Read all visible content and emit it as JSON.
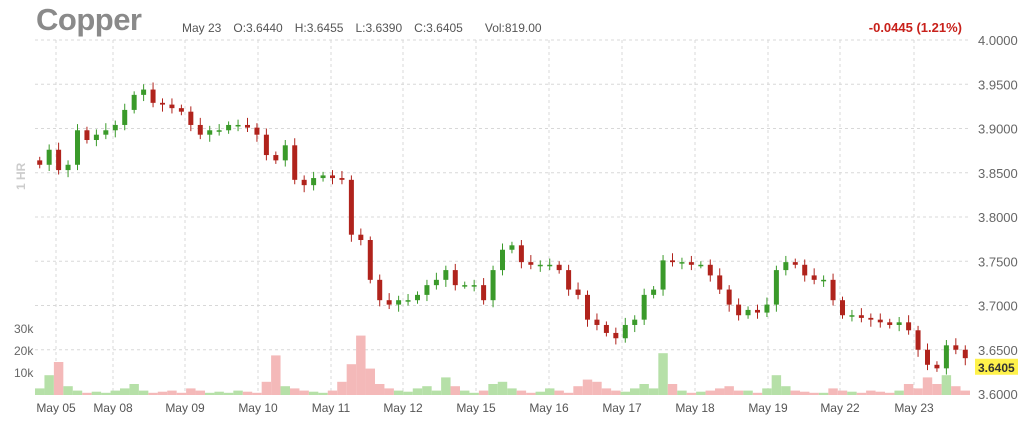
{
  "header": {
    "symbol": "Copper",
    "date": "May 23",
    "open": "O:3.6440",
    "high": "H:3.6455",
    "low": "L:3.6390",
    "close": "C:3.6405",
    "volume": "Vol:819.00",
    "change": "-0.0445 (1.21%)",
    "interval": "1 HR"
  },
  "colors": {
    "up": "#3a9a2a",
    "down": "#b0231c",
    "vol_up": "#b6e0a8",
    "vol_down": "#f4b9b9",
    "last_badge": "#fff24a"
  },
  "chart_data": {
    "type": "candlestick",
    "ylim": [
      3.6,
      4.0
    ],
    "y_ticks": [
      "4.0000",
      "3.9500",
      "3.9000",
      "3.8500",
      "3.8000",
      "3.7500",
      "3.7000",
      "3.6500",
      "3.6000"
    ],
    "x_labels": [
      "May 05",
      "May 08",
      "May 09",
      "May 10",
      "May 11",
      "May 12",
      "May 15",
      "May 16",
      "May 17",
      "May 18",
      "May 19",
      "May 22",
      "May 23"
    ],
    "volume_ticks": [
      "30k",
      "20k",
      "10k"
    ],
    "last_price": "3.6405",
    "grid": true,
    "closes": [
      3.859,
      3.876,
      3.853,
      3.859,
      3.898,
      3.887,
      3.893,
      3.898,
      3.904,
      3.921,
      3.938,
      3.944,
      3.929,
      3.927,
      3.923,
      3.919,
      3.904,
      3.893,
      3.898,
      3.898,
      3.904,
      3.904,
      3.901,
      3.893,
      3.87,
      3.864,
      3.881,
      3.842,
      3.836,
      3.844,
      3.847,
      3.844,
      3.842,
      3.78,
      3.774,
      3.729,
      3.706,
      3.701,
      3.706,
      3.706,
      3.712,
      3.723,
      3.729,
      3.74,
      3.723,
      3.723,
      3.723,
      3.706,
      3.74,
      3.763,
      3.768,
      3.749,
      3.746,
      3.746,
      3.746,
      3.74,
      3.718,
      3.712,
      3.684,
      3.678,
      3.669,
      3.663,
      3.678,
      3.684,
      3.712,
      3.718,
      3.751,
      3.749,
      3.749,
      3.746,
      3.746,
      3.734,
      3.718,
      3.701,
      3.689,
      3.695,
      3.692,
      3.701,
      3.74,
      3.749,
      3.746,
      3.734,
      3.729,
      3.729,
      3.706,
      3.689,
      3.689,
      3.686,
      3.684,
      3.681,
      3.678,
      3.681,
      3.672,
      3.65,
      3.633,
      3.629,
      3.655,
      3.65,
      3.6405
    ],
    "volumes": [
      3000,
      9000,
      15000,
      4000,
      2000,
      1000,
      1500,
      1000,
      2000,
      3000,
      5000,
      2000,
      1000,
      1500,
      2000,
      1000,
      3000,
      2000,
      1000,
      1500,
      1000,
      2000,
      1500,
      1000,
      6000,
      18000,
      4000,
      3000,
      2000,
      1500,
      1000,
      2000,
      6000,
      14000,
      27000,
      12000,
      5000,
      3000,
      2000,
      1500,
      3000,
      4000,
      2000,
      8000,
      4000,
      2000,
      1000,
      2000,
      5000,
      6000,
      3000,
      2000,
      1000,
      1500,
      3000,
      2000,
      1000,
      4000,
      7000,
      6000,
      3000,
      2000,
      1500,
      3000,
      5000,
      3000,
      19000,
      5000,
      2000,
      1000,
      1500,
      2000,
      3000,
      4000,
      2000,
      2000,
      1000,
      3000,
      9000,
      4000,
      2000,
      1500,
      1000,
      1000,
      3000,
      2000,
      1500,
      1000,
      2000,
      1500,
      1000,
      2000,
      5000,
      3000,
      8000,
      5000,
      9000,
      4000,
      2000
    ]
  }
}
